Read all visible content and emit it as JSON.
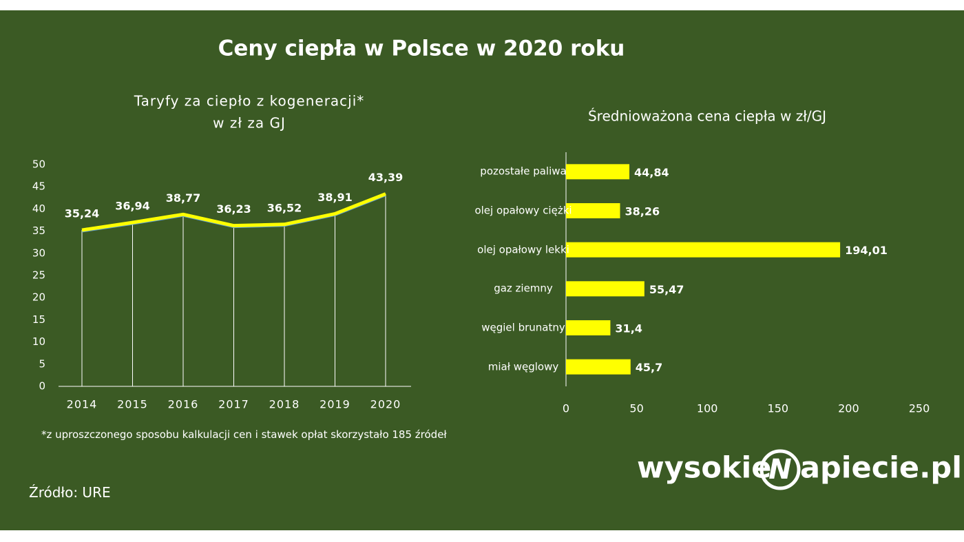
{
  "title": "Ceny ciepła w Polsce w 2020 roku",
  "chart_data": [
    {
      "type": "line",
      "title": "Taryfy za ciepło z kogeneracji*",
      "subtitle": "w zł za GJ",
      "categories": [
        "2014",
        "2015",
        "2016",
        "2017",
        "2018",
        "2019",
        "2020"
      ],
      "values": [
        35.24,
        36.94,
        38.77,
        36.23,
        36.52,
        38.91,
        43.39
      ],
      "value_labels": [
        "35,24",
        "36,94",
        "38,77",
        "36,23",
        "36,52",
        "38,91",
        "43,39"
      ],
      "color": "#ffff00",
      "ylim": [
        0,
        50
      ],
      "yticks": [
        0,
        5,
        10,
        15,
        20,
        25,
        30,
        35,
        40,
        45,
        50
      ]
    },
    {
      "type": "hbar",
      "title": "Średnioważona cena ciepła w zł/GJ",
      "categories": [
        "pozostałe paliwa",
        "olej opałowy ciężki",
        "olej opałowy lekki",
        "gaz ziemny",
        "węgiel brunatny",
        "miał węglowy"
      ],
      "values": [
        44.84,
        38.26,
        194.01,
        55.47,
        31.4,
        45.7
      ],
      "value_labels": [
        "44,84",
        "38,26",
        "194,01",
        "55,47",
        "31,4",
        "45,7"
      ],
      "color": "#ffff00",
      "xlim": [
        0,
        250
      ],
      "xticks": [
        0,
        50,
        100,
        150,
        200,
        250
      ]
    }
  ],
  "footnote": "*z uproszczonego sposobu kalkulacji cen i stawek opłat skorzystało 185 źródeł",
  "source": "Źródło: URE",
  "logo": [
    "wysokie",
    "N",
    "apiecie.pl"
  ]
}
